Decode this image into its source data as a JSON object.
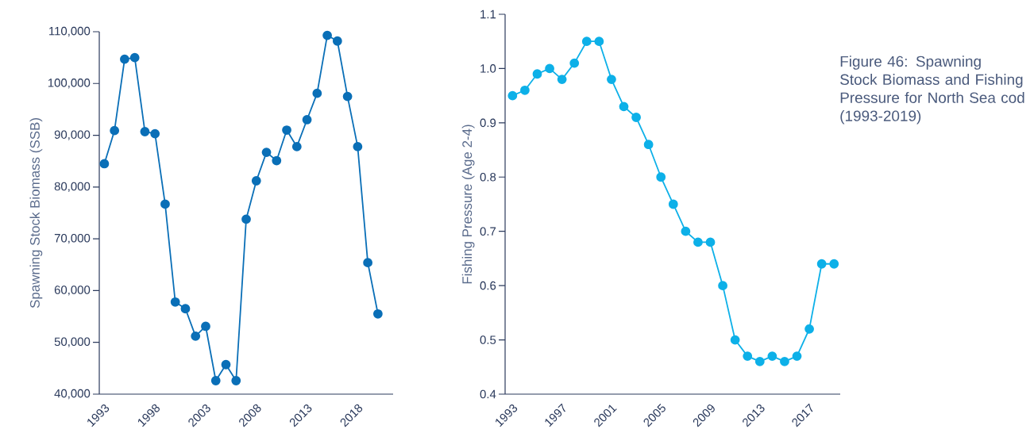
{
  "chart_data": [
    {
      "type": "line",
      "ylabel": "Spawning Stock Biomass (SSB)",
      "marker": "circle",
      "x": [
        1993,
        1994,
        1995,
        1996,
        1997,
        1998,
        1999,
        2000,
        2001,
        2002,
        2003,
        2004,
        2005,
        2006,
        2007,
        2008,
        2009,
        2010,
        2011,
        2012,
        2013,
        2014,
        2015,
        2016,
        2017,
        2018,
        2019,
        2020
      ],
      "series": [
        {
          "color": "#0a6fb7",
          "values": [
            84500,
            90900,
            104700,
            105000,
            90700,
            90300,
            76700,
            57800,
            56500,
            51200,
            53100,
            42600,
            45700,
            42600,
            73800,
            81200,
            86700,
            85100,
            91000,
            87800,
            93000,
            98100,
            109300,
            108200,
            97500,
            87800,
            65400,
            55500
          ]
        }
      ],
      "xlim": [
        1992.5,
        2021.5
      ],
      "ylim": [
        40000,
        110000
      ],
      "xticks": [
        1993,
        1998,
        2003,
        2008,
        2013,
        2018
      ],
      "yticks": [
        {
          "value": 40000,
          "label": "40,000"
        },
        {
          "value": 50000,
          "label": "50,000"
        },
        {
          "value": 60000,
          "label": "60,000"
        },
        {
          "value": 70000,
          "label": "70,000"
        },
        {
          "value": 80000,
          "label": "80,000"
        },
        {
          "value": 90000,
          "label": "90,000"
        },
        {
          "value": 100000,
          "label": "100,000"
        },
        {
          "value": 110000,
          "label": "110,000"
        }
      ]
    },
    {
      "type": "line",
      "ylabel": "Fishing Pressure (Age 2-4)",
      "marker": "circle",
      "annotations": [
        "Figure 46: Spawning Stock Biomass and Fishing Pressure for North Sea cod (1993-2019)"
      ],
      "x": [
        1993,
        1994,
        1995,
        1996,
        1997,
        1998,
        1999,
        2000,
        2001,
        2002,
        2003,
        2004,
        2005,
        2006,
        2007,
        2008,
        2009,
        2010,
        2011,
        2012,
        2013,
        2014,
        2015,
        2016,
        2017,
        2018,
        2019
      ],
      "series": [
        {
          "color": "#0db0e8",
          "values": [
            0.95,
            0.96,
            0.99,
            1.0,
            0.98,
            1.01,
            1.05,
            1.05,
            0.98,
            0.93,
            0.91,
            0.86,
            0.8,
            0.75,
            0.7,
            0.68,
            0.68,
            0.6,
            0.5,
            0.47,
            0.46,
            0.47,
            0.46,
            0.47,
            0.52,
            0.64,
            0.64
          ]
        }
      ],
      "xlim": [
        1992.4,
        2019.5
      ],
      "ylim": [
        0.4,
        1.1
      ],
      "xticks": [
        1993,
        1997,
        2001,
        2005,
        2009,
        2013,
        2017
      ],
      "yticks": [
        0.4,
        0.5,
        0.6,
        0.7,
        0.8,
        0.9,
        {
          "value": 1.0,
          "label": "1.0"
        },
        1.1
      ]
    }
  ]
}
